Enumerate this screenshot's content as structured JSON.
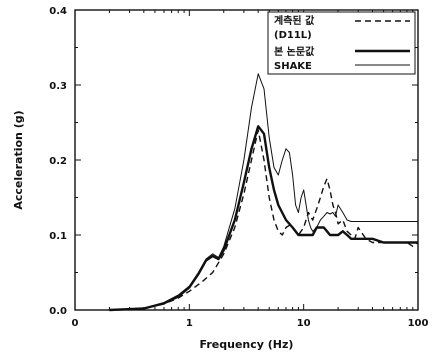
{
  "chart_data": {
    "type": "line",
    "xscale": "log",
    "xlabel": "Frequency (Hz)",
    "ylabel": "Acceleration (g)",
    "xlim": [
      0,
      100
    ],
    "ylim": [
      0.0,
      0.4
    ],
    "xticks": [
      0,
      1,
      10,
      100
    ],
    "xtick_labels": [
      "0",
      "1",
      "10",
      "100"
    ],
    "yticks": [
      0.0,
      0.1,
      0.2,
      0.3,
      0.4
    ],
    "ytick_labels": [
      "0.0",
      "0.1",
      "0.2",
      "0.3",
      "0.4"
    ],
    "grid": false,
    "legend_position": "top-right",
    "series": [
      {
        "name": "계측된 값 (D11L)",
        "style": "dashed",
        "color": "#111111",
        "x": [
          0.2,
          0.4,
          0.6,
          0.8,
          1.0,
          1.3,
          1.6,
          2.0,
          2.5,
          3.0,
          3.5,
          4.0,
          4.5,
          5.0,
          5.5,
          6.0,
          6.5,
          7.0,
          7.5,
          8.0,
          9.0,
          10.0,
          11.0,
          12.0,
          13.0,
          14.0,
          15.0,
          16.0,
          17.0,
          18.0,
          19.0,
          20.0,
          22.0,
          24.0,
          26.0,
          28.0,
          30.0,
          35.0,
          40.0,
          50.0,
          60.0,
          70.0,
          80.0,
          90.0,
          100.0
        ],
        "y": [
          0.0,
          0.002,
          0.008,
          0.016,
          0.025,
          0.038,
          0.05,
          0.075,
          0.11,
          0.155,
          0.2,
          0.24,
          0.2,
          0.15,
          0.12,
          0.105,
          0.1,
          0.11,
          0.113,
          0.11,
          0.1,
          0.11,
          0.13,
          0.12,
          0.135,
          0.15,
          0.165,
          0.175,
          0.16,
          0.14,
          0.13,
          0.115,
          0.12,
          0.105,
          0.1,
          0.095,
          0.11,
          0.095,
          0.09,
          0.09,
          0.09,
          0.09,
          0.09,
          0.085,
          0.09
        ]
      },
      {
        "name": "본 논문값",
        "style": "solid-thick",
        "color": "#111111",
        "x": [
          0.2,
          0.4,
          0.6,
          0.8,
          1.0,
          1.2,
          1.4,
          1.6,
          1.8,
          2.0,
          2.5,
          3.0,
          3.5,
          4.0,
          4.5,
          5.0,
          5.5,
          6.0,
          7.0,
          8.0,
          9.0,
          10.0,
          11.0,
          12.0,
          13.0,
          14.0,
          15.0,
          16.0,
          17.0,
          18.0,
          20.0,
          22.0,
          24.0,
          26.0,
          28.0,
          30.0,
          35.0,
          40.0,
          50.0,
          60.0,
          70.0,
          80.0,
          90.0,
          100.0
        ],
        "y": [
          0.0,
          0.002,
          0.009,
          0.018,
          0.03,
          0.048,
          0.066,
          0.072,
          0.068,
          0.08,
          0.12,
          0.17,
          0.215,
          0.245,
          0.235,
          0.19,
          0.16,
          0.14,
          0.12,
          0.11,
          0.1,
          0.1,
          0.1,
          0.1,
          0.11,
          0.11,
          0.11,
          0.105,
          0.1,
          0.1,
          0.1,
          0.105,
          0.1,
          0.095,
          0.095,
          0.095,
          0.095,
          0.095,
          0.09,
          0.09,
          0.09,
          0.09,
          0.09,
          0.09
        ]
      },
      {
        "name": "SHAKE",
        "style": "solid-thin",
        "color": "#111111",
        "x": [
          0.2,
          0.4,
          0.6,
          0.8,
          1.0,
          1.2,
          1.4,
          1.6,
          1.8,
          2.0,
          2.5,
          3.0,
          3.5,
          4.0,
          4.5,
          5.0,
          5.5,
          6.0,
          6.5,
          7.0,
          7.5,
          8.0,
          8.5,
          9.0,
          9.5,
          10.0,
          10.5,
          11.0,
          11.5,
          12.0,
          13.0,
          14.0,
          15.0,
          16.0,
          17.0,
          18.0,
          19.0,
          20.0,
          22.0,
          24.0,
          26.0,
          28.0,
          30.0,
          35.0,
          40.0,
          50.0,
          60.0,
          70.0,
          80.0,
          90.0,
          100.0
        ],
        "y": [
          0.0,
          0.002,
          0.01,
          0.02,
          0.032,
          0.05,
          0.068,
          0.075,
          0.07,
          0.085,
          0.135,
          0.2,
          0.27,
          0.315,
          0.295,
          0.23,
          0.19,
          0.18,
          0.2,
          0.215,
          0.21,
          0.18,
          0.14,
          0.13,
          0.15,
          0.16,
          0.14,
          0.12,
          0.11,
          0.105,
          0.11,
          0.12,
          0.125,
          0.13,
          0.128,
          0.13,
          0.125,
          0.14,
          0.13,
          0.12,
          0.118,
          0.118,
          0.118,
          0.118,
          0.118,
          0.118,
          0.118,
          0.118,
          0.118,
          0.118,
          0.118
        ]
      }
    ],
    "legend": [
      {
        "label_lines": [
          "계측된 값",
          "(D11L)"
        ],
        "style": "dashed"
      },
      {
        "label_lines": [
          "본 논문값"
        ],
        "style": "solid-thick"
      },
      {
        "label_lines": [
          "SHAKE"
        ],
        "style": "solid-thin"
      }
    ]
  }
}
